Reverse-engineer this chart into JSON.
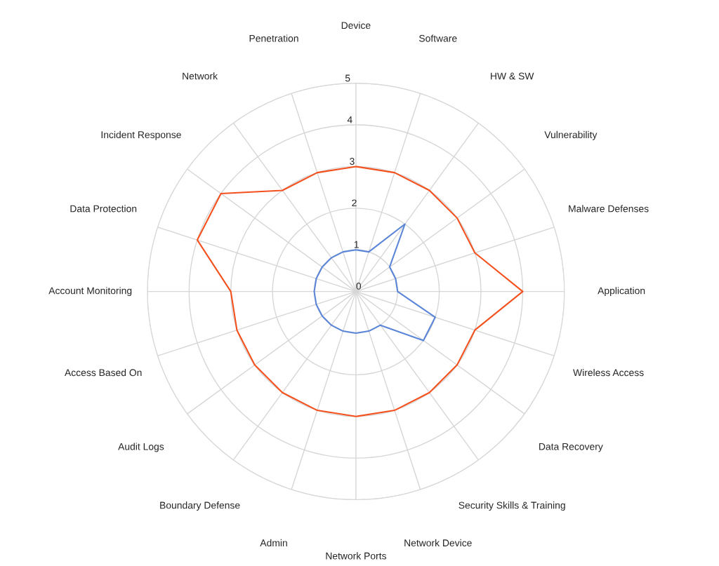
{
  "chart_data": {
    "type": "radar",
    "categories": [
      "Device",
      "Software",
      "HW & SW",
      "Vulnerability",
      "Malware Defenses",
      "Application",
      "Wireless Access",
      "Data Recovery",
      "Security Skills & Training",
      "Network Device",
      "Network Ports",
      "Admin",
      "Boundary Defense",
      "Audit Logs",
      "Access Based On",
      "Account Monitoring",
      "Data Protection",
      "Incident Response",
      "Network",
      "Penetration"
    ],
    "series": [
      {
        "color": "#f4511e",
        "values": [
          3,
          3,
          3,
          3,
          3,
          4,
          3,
          3,
          3,
          3,
          3,
          3,
          3,
          3,
          3,
          3,
          4,
          4,
          3,
          3
        ]
      },
      {
        "color": "#5b86d8",
        "values": [
          1,
          1,
          2,
          1,
          1,
          1,
          2,
          2,
          1,
          1,
          1,
          1,
          1,
          1,
          1,
          1,
          1,
          1,
          1,
          1
        ]
      }
    ],
    "ylim": [
      0,
      5
    ],
    "yticks": [
      0,
      1,
      2,
      3,
      4,
      5
    ],
    "grid": true,
    "marker": "none",
    "line_style": "solid"
  }
}
